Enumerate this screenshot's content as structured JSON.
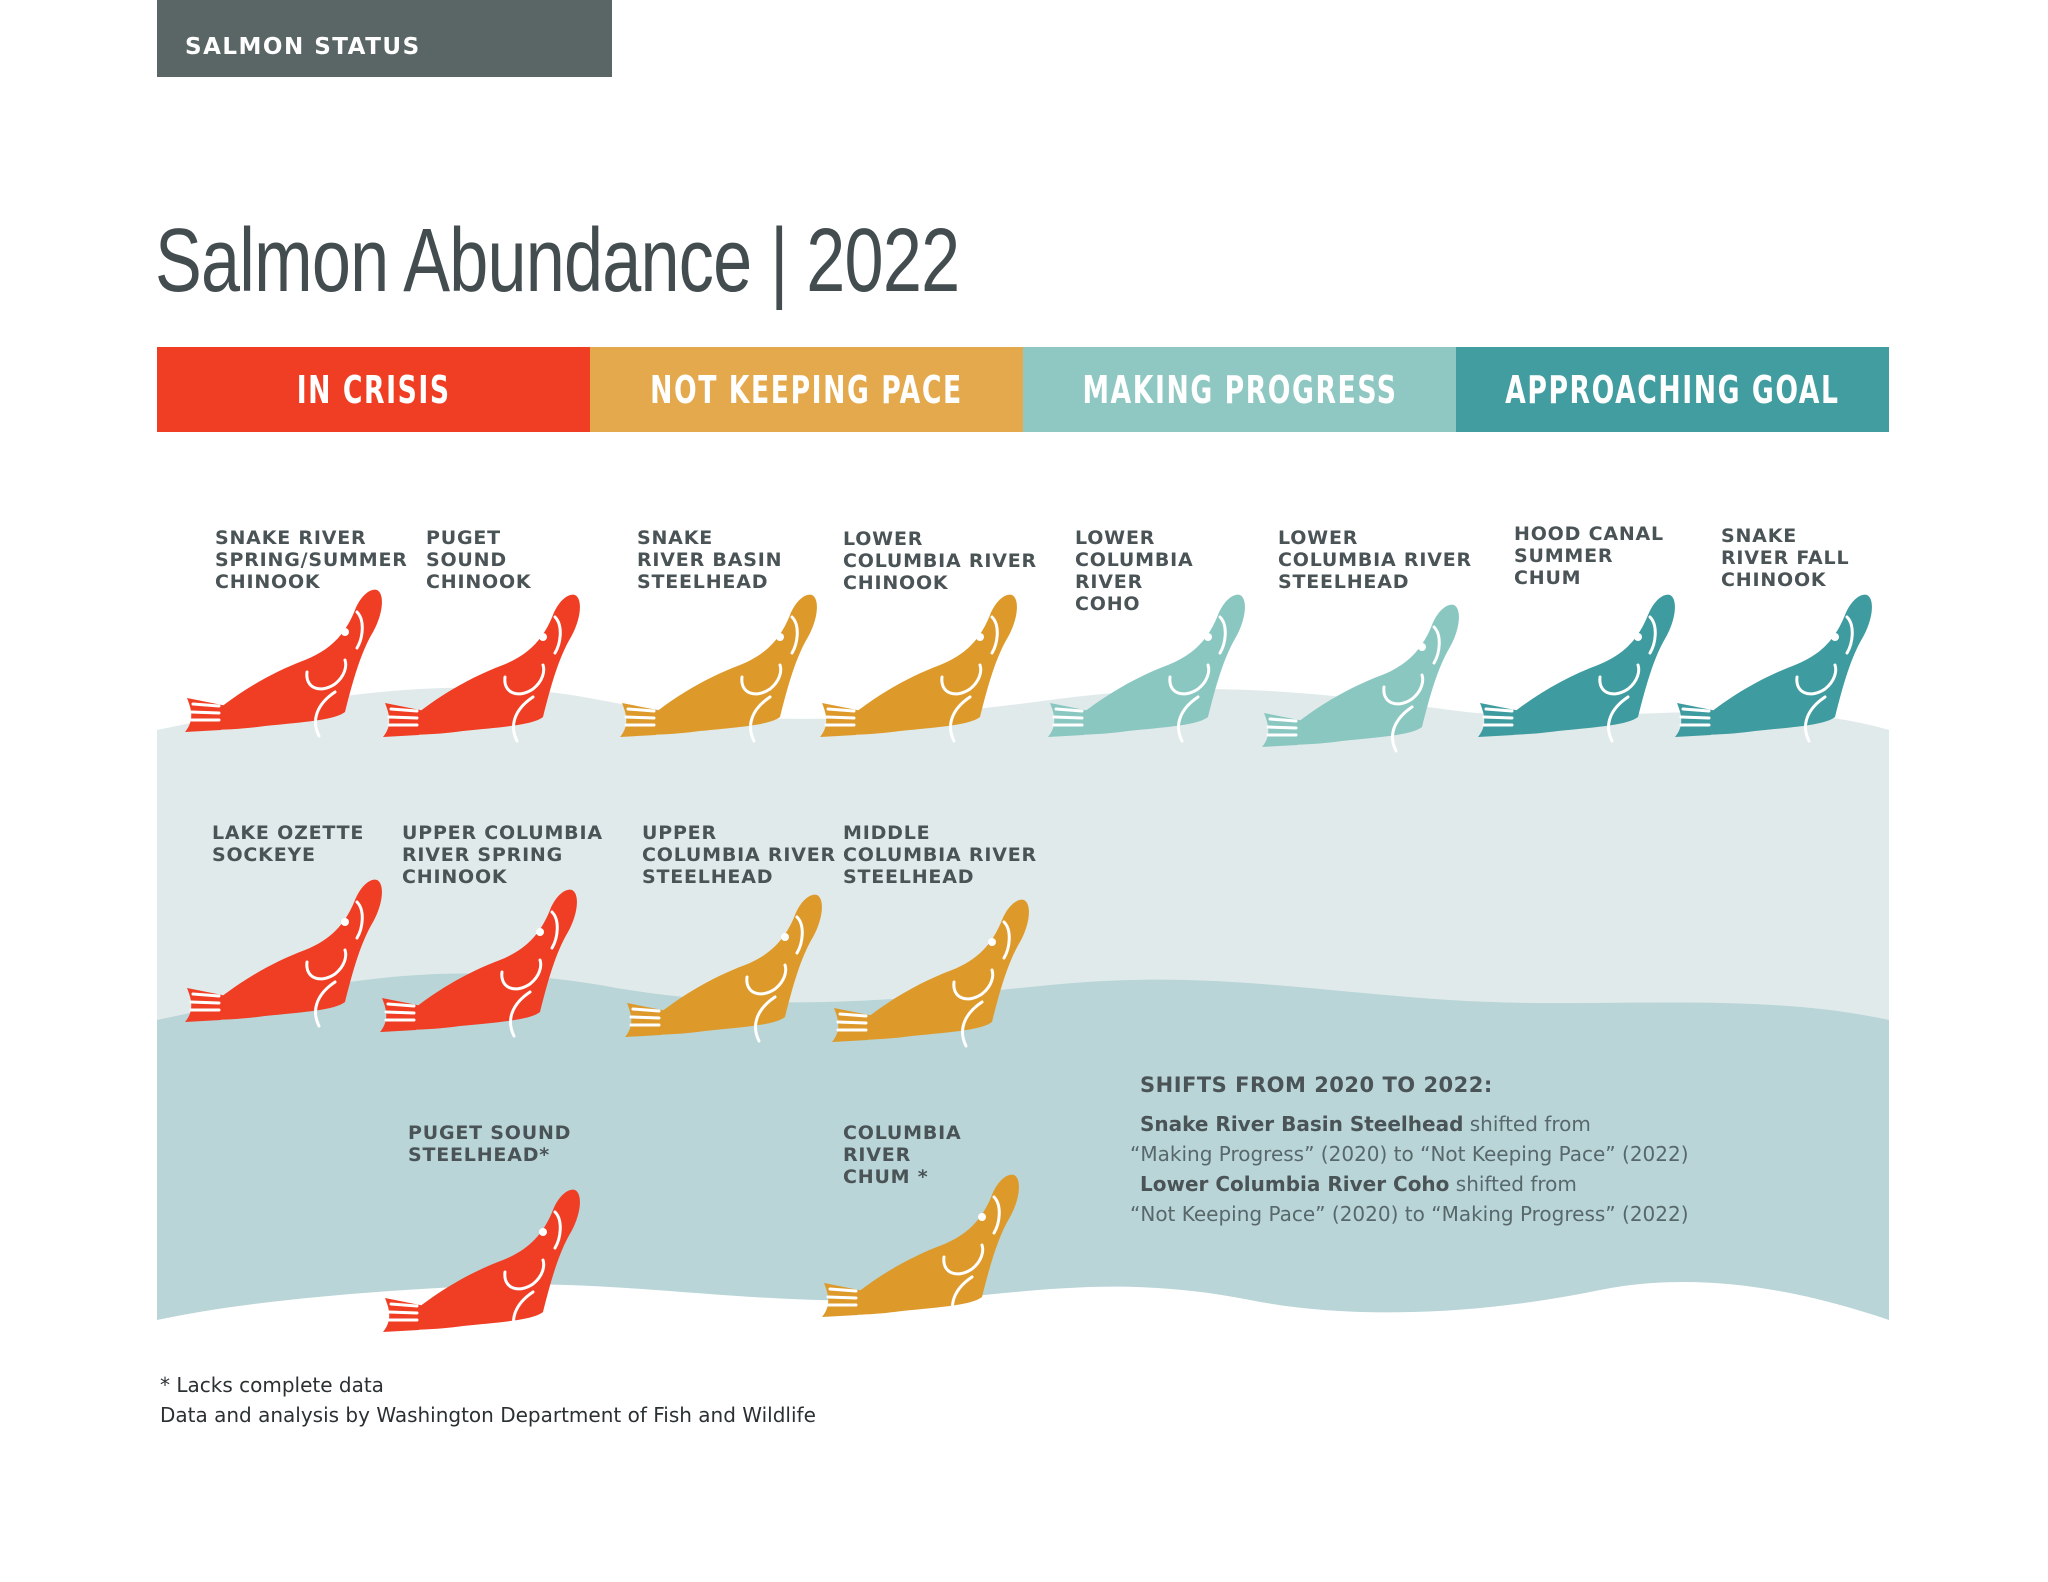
{
  "header_tag": "SALMON STATUS",
  "title": "Salmon Abundance | 2022",
  "statuses": [
    {
      "label": "IN CRISIS",
      "color": "#ef3e24"
    },
    {
      "label": "NOT KEEPING PACE",
      "color": "#e3a94c"
    },
    {
      "label": "MAKING PROGRESS",
      "color": "#8fc8c2"
    },
    {
      "label": "APPROACHING GOAL",
      "color": "#419da0"
    }
  ],
  "fish_colors": {
    "in_crisis": "#ef3e24",
    "not_keeping_pace": "#dd9a2b",
    "making_progress": "#8ac7c1",
    "approaching_goal": "#3e9b9f"
  },
  "wave_colors": [
    "#e1eaea",
    "#b9d5d8"
  ],
  "species": [
    {
      "name": "SNAKE RIVER\nSPRING/SUMMER\nCHINOOK",
      "status": "in_crisis"
    },
    {
      "name": "PUGET\nSOUND\nCHINOOK",
      "status": "in_crisis"
    },
    {
      "name": "SNAKE\nRIVER BASIN\nSTEELHEAD",
      "status": "not_keeping_pace"
    },
    {
      "name": "LOWER\nCOLUMBIA RIVER\nCHINOOK",
      "status": "not_keeping_pace"
    },
    {
      "name": "LOWER\nCOLUMBIA\nRIVER\nCOHO",
      "status": "making_progress"
    },
    {
      "name": "LOWER\nCOLUMBIA RIVER\nSTEELHEAD",
      "status": "making_progress"
    },
    {
      "name": "HOOD CANAL\nSUMMER\nCHUM",
      "status": "approaching_goal"
    },
    {
      "name": "SNAKE\nRIVER FALL\nCHINOOK",
      "status": "approaching_goal"
    },
    {
      "name": "LAKE OZETTE\nSOCKEYE",
      "status": "in_crisis"
    },
    {
      "name": "UPPER COLUMBIA\nRIVER SPRING\nCHINOOK",
      "status": "in_crisis"
    },
    {
      "name": "UPPER\nCOLUMBIA RIVER\nSTEELHEAD",
      "status": "not_keeping_pace"
    },
    {
      "name": "MIDDLE\nCOLUMBIA RIVER\nSTEELHEAD",
      "status": "not_keeping_pace"
    },
    {
      "name": "PUGET SOUND\nSTEELHEAD*",
      "status": "in_crisis"
    },
    {
      "name": "COLUMBIA\nRIVER\nCHUM *",
      "status": "not_keeping_pace"
    }
  ],
  "shifts": {
    "heading": "SHIFTS FROM 2020 TO 2022:",
    "items": [
      {
        "species": "Snake River Basin Steelhead",
        "verb": "shifted from",
        "detail": "“Making Progress” (2020) to “Not Keeping Pace” (2022)"
      },
      {
        "species": "Lower Columbia River Coho",
        "verb": "shifted from",
        "detail": "“Not Keeping Pace” (2020) to “Making Progress” (2022)"
      }
    ]
  },
  "footnotes": [
    "* Lacks complete data",
    "Data and analysis by Washington Department of Fish and Wildlife"
  ]
}
